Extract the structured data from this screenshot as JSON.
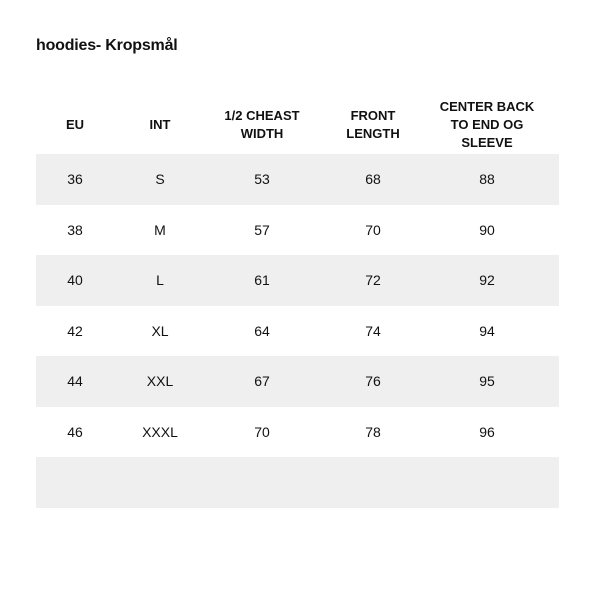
{
  "title": "hoodies- Kropsmål",
  "table": {
    "headers": [
      "EU",
      "INT",
      "1/2 CHEAST\nWIDTH",
      "FRONT\nLENGTH",
      "CENTER BACK\nTO END OG\nSLEEVE"
    ],
    "rows": [
      [
        "36",
        "S",
        "53",
        "68",
        "88"
      ],
      [
        "38",
        "M",
        "57",
        "70",
        "90"
      ],
      [
        "40",
        "L",
        "61",
        "72",
        "92"
      ],
      [
        "42",
        "XL",
        "64",
        "74",
        "94"
      ],
      [
        "44",
        "XXL",
        "67",
        "76",
        "95"
      ],
      [
        "46",
        "XXXL",
        "70",
        "78",
        "96"
      ],
      [
        "",
        "",
        "",
        "",
        ""
      ]
    ]
  },
  "colors": {
    "row_shade": "#efefef",
    "text": "#111111",
    "background": "#ffffff"
  }
}
